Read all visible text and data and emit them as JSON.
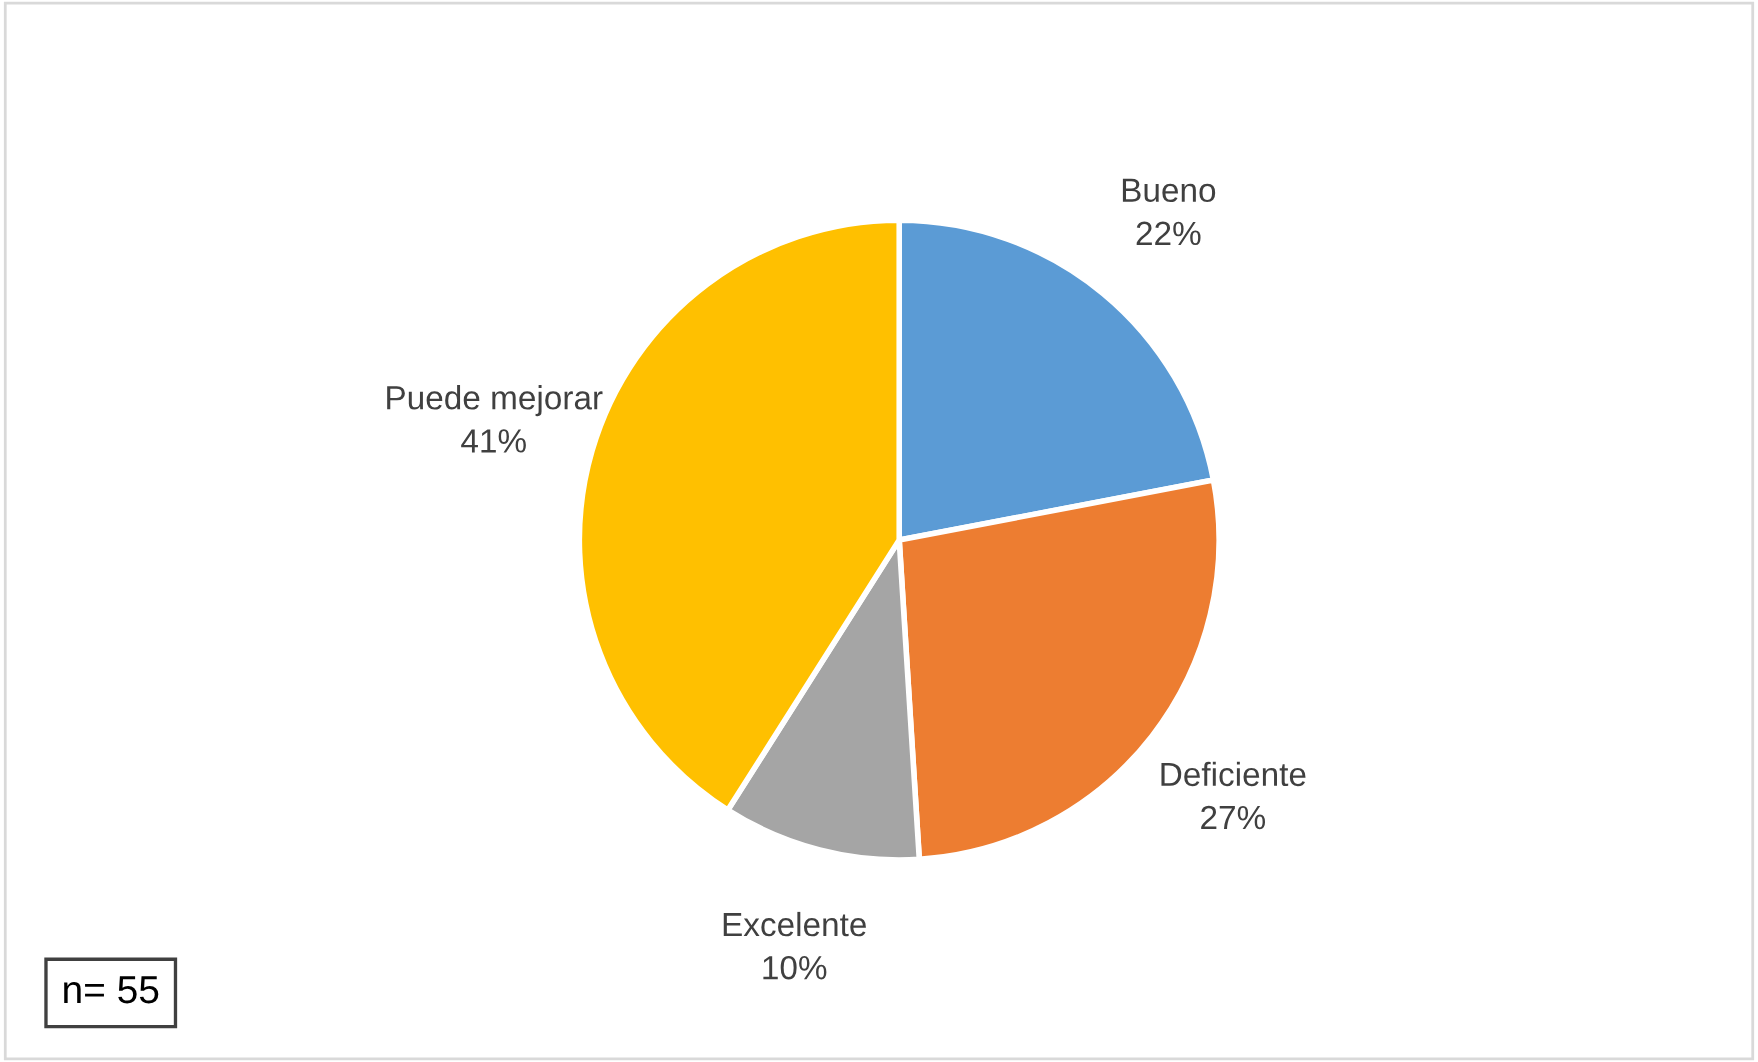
{
  "chart_data": {
    "type": "pie",
    "categories": [
      "Bueno",
      "Deficiente",
      "Excelente",
      "Puede mejorar"
    ],
    "values": [
      22,
      27,
      10,
      41
    ],
    "value_labels": [
      "22%",
      "27%",
      "10%",
      "41%"
    ],
    "colors": [
      "#5b9bd5",
      "#ed7d31",
      "#a5a5a5",
      "#ffc000"
    ],
    "annotations": [
      "n= 55"
    ],
    "legend": false
  }
}
